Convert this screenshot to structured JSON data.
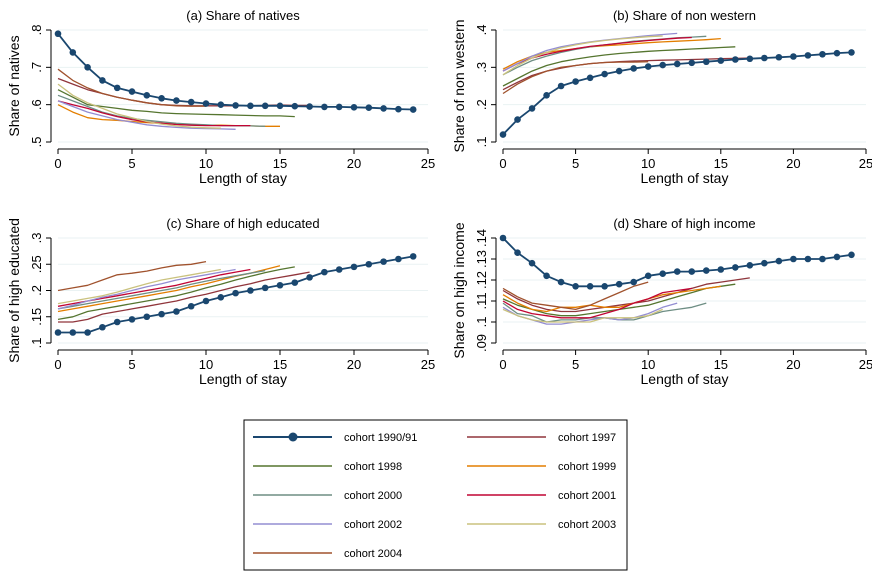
{
  "colors": {
    "cohort_1990_91": "#1a476f",
    "cohort_1997": "#90353b",
    "cohort_1998": "#55752f",
    "cohort_1999": "#e37e00",
    "cohort_2000": "#6e8e84",
    "cohort_2001": "#c10534",
    "cohort_2002": "#938dd2",
    "cohort_2003": "#cac27e",
    "cohort_2004": "#a0522d"
  },
  "legend": [
    "cohort 1990/91",
    "cohort 1997",
    "cohort 1998",
    "cohort 1999",
    "cohort 2000",
    "cohort 2001",
    "cohort 2002",
    "cohort 2003",
    "cohort 2004"
  ],
  "chart_data": [
    {
      "type": "line",
      "title": "(a) Share of natives",
      "xlabel": "Length of stay",
      "ylabel": "Share of natives",
      "xlim": [
        0,
        25
      ],
      "xticks": [
        0,
        5,
        10,
        15,
        20,
        25
      ],
      "ylim": [
        0.5,
        0.8
      ],
      "yticks": [
        "0.5",
        "0.6",
        "0.7",
        "0.8"
      ],
      "yticklabels": [
        ".5",
        ".6",
        ".7",
        ".8"
      ],
      "series": [
        {
          "name": "cohort 1990/91",
          "color_key": "cohort_1990_91",
          "markers": true,
          "y": [
            0.79,
            0.74,
            0.7,
            0.665,
            0.645,
            0.635,
            0.625,
            0.617,
            0.611,
            0.607,
            0.603,
            0.6,
            0.598,
            0.597,
            0.597,
            0.597,
            0.596,
            0.595,
            0.594,
            0.594,
            0.593,
            0.592,
            0.59,
            0.588,
            0.587
          ]
        },
        {
          "name": "cohort 1997",
          "color_key": "cohort_1997",
          "y": [
            0.67,
            0.655,
            0.64,
            0.63,
            0.62,
            0.612,
            0.605,
            0.6,
            0.598,
            0.597,
            0.597,
            0.597,
            0.597,
            0.597,
            0.598,
            0.599,
            0.598,
            0.598
          ]
        },
        {
          "name": "cohort 1998",
          "color_key": "cohort_1998",
          "y": [
            0.64,
            0.62,
            0.6,
            0.595,
            0.59,
            0.585,
            0.582,
            0.578,
            0.576,
            0.575,
            0.574,
            0.573,
            0.572,
            0.571,
            0.57,
            0.57,
            0.568
          ]
        },
        {
          "name": "cohort 1999",
          "color_key": "cohort_1999",
          "y": [
            0.6,
            0.58,
            0.565,
            0.56,
            0.558,
            0.555,
            0.552,
            0.55,
            0.548,
            0.546,
            0.545,
            0.545,
            0.544,
            0.543,
            0.542,
            0.542
          ]
        },
        {
          "name": "cohort 2000",
          "color_key": "cohort_2000",
          "y": [
            0.625,
            0.61,
            0.595,
            0.58,
            0.57,
            0.563,
            0.558,
            0.554,
            0.55,
            0.548,
            0.546,
            0.544,
            0.543,
            0.543,
            0.542
          ]
        },
        {
          "name": "cohort 2001",
          "color_key": "cohort_2001",
          "y": [
            0.61,
            0.6,
            0.59,
            0.578,
            0.568,
            0.56,
            0.554,
            0.55,
            0.547,
            0.545,
            0.544,
            0.544,
            0.544,
            0.544
          ]
        },
        {
          "name": "cohort 2002",
          "color_key": "cohort_2002",
          "y": [
            0.61,
            0.595,
            0.58,
            0.57,
            0.56,
            0.553,
            0.546,
            0.542,
            0.539,
            0.537,
            0.536,
            0.535,
            0.534
          ]
        },
        {
          "name": "cohort 2003",
          "color_key": "cohort_2003",
          "y": [
            0.655,
            0.625,
            0.605,
            0.59,
            0.575,
            0.565,
            0.555,
            0.548,
            0.543,
            0.54,
            0.538,
            0.537
          ]
        },
        {
          "name": "cohort 2004",
          "color_key": "cohort_2004",
          "y": [
            0.695,
            0.665,
            0.645,
            0.63,
            0.62,
            0.612,
            0.605,
            0.6,
            0.597,
            0.596,
            0.596
          ]
        }
      ]
    },
    {
      "type": "line",
      "title": "(b) Share of non western",
      "xlabel": "Length of stay",
      "ylabel": "Share of non western",
      "xlim": [
        0,
        25
      ],
      "xticks": [
        0,
        5,
        10,
        15,
        20,
        25
      ],
      "ylim": [
        0.1,
        0.4
      ],
      "yticks": [
        "0.1",
        "0.2",
        "0.3",
        "0.4"
      ],
      "yticklabels": [
        ".1",
        ".2",
        ".3",
        ".4"
      ],
      "series": [
        {
          "name": "cohort 1990/91",
          "color_key": "cohort_1990_91",
          "markers": true,
          "y": [
            0.12,
            0.16,
            0.19,
            0.225,
            0.25,
            0.262,
            0.272,
            0.282,
            0.29,
            0.297,
            0.302,
            0.306,
            0.309,
            0.312,
            0.315,
            0.318,
            0.321,
            0.323,
            0.325,
            0.327,
            0.329,
            0.332,
            0.335,
            0.338,
            0.34
          ]
        },
        {
          "name": "cohort 1997",
          "color_key": "cohort_1997",
          "y": [
            0.24,
            0.26,
            0.278,
            0.29,
            0.298,
            0.305,
            0.31,
            0.313,
            0.315,
            0.317,
            0.318,
            0.319,
            0.32,
            0.321,
            0.322,
            0.323,
            0.324,
            0.325
          ]
        },
        {
          "name": "cohort 1998",
          "color_key": "cohort_1998",
          "y": [
            0.25,
            0.27,
            0.29,
            0.305,
            0.315,
            0.322,
            0.328,
            0.333,
            0.337,
            0.34,
            0.343,
            0.345,
            0.347,
            0.349,
            0.351,
            0.353,
            0.355
          ]
        },
        {
          "name": "cohort 1999",
          "color_key": "cohort_1999",
          "y": [
            0.295,
            0.315,
            0.33,
            0.34,
            0.345,
            0.35,
            0.355,
            0.358,
            0.36,
            0.363,
            0.366,
            0.368,
            0.37,
            0.372,
            0.374,
            0.377
          ]
        },
        {
          "name": "cohort 2000",
          "color_key": "cohort_2000",
          "y": [
            0.28,
            0.3,
            0.318,
            0.33,
            0.34,
            0.348,
            0.355,
            0.36,
            0.365,
            0.37,
            0.373,
            0.376,
            0.379,
            0.381,
            0.383
          ]
        },
        {
          "name": "cohort 2001",
          "color_key": "cohort_2001",
          "y": [
            0.29,
            0.31,
            0.325,
            0.335,
            0.343,
            0.35,
            0.356,
            0.36,
            0.364,
            0.368,
            0.372,
            0.375,
            0.378,
            0.38
          ]
        },
        {
          "name": "cohort 2002",
          "color_key": "cohort_2002",
          "y": [
            0.29,
            0.31,
            0.33,
            0.345,
            0.355,
            0.362,
            0.368,
            0.373,
            0.377,
            0.381,
            0.385,
            0.388,
            0.391
          ]
        },
        {
          "name": "cohort 2003",
          "color_key": "cohort_2003",
          "y": [
            0.28,
            0.305,
            0.325,
            0.34,
            0.352,
            0.36,
            0.367,
            0.372,
            0.376,
            0.379,
            0.382,
            0.384
          ]
        },
        {
          "name": "cohort 2004",
          "color_key": "cohort_2004",
          "y": [
            0.23,
            0.255,
            0.275,
            0.29,
            0.3,
            0.305,
            0.31,
            0.313,
            0.314,
            0.314,
            0.315
          ]
        }
      ]
    },
    {
      "type": "line",
      "title": "(c) Share of high educated",
      "xlabel": "Length of stay",
      "ylabel": "Share of high educated",
      "xlim": [
        0,
        25
      ],
      "xticks": [
        0,
        5,
        10,
        15,
        20,
        25
      ],
      "ylim": [
        0.1,
        0.3
      ],
      "yticks": [
        "0.1",
        "0.15",
        "0.2",
        "0.25",
        "0.3"
      ],
      "yticklabels": [
        ".1",
        ".15",
        ".2",
        ".25",
        ".3"
      ],
      "series": [
        {
          "name": "cohort 1990/91",
          "color_key": "cohort_1990_91",
          "markers": true,
          "y": [
            0.12,
            0.12,
            0.12,
            0.13,
            0.14,
            0.145,
            0.15,
            0.155,
            0.16,
            0.17,
            0.18,
            0.187,
            0.195,
            0.2,
            0.205,
            0.21,
            0.215,
            0.225,
            0.235,
            0.24,
            0.245,
            0.25,
            0.255,
            0.26,
            0.265
          ]
        },
        {
          "name": "cohort 1997",
          "color_key": "cohort_1997",
          "y": [
            0.14,
            0.14,
            0.145,
            0.155,
            0.16,
            0.165,
            0.17,
            0.175,
            0.18,
            0.187,
            0.193,
            0.2,
            0.207,
            0.213,
            0.22,
            0.225,
            0.23,
            0.235
          ]
        },
        {
          "name": "cohort 1998",
          "color_key": "cohort_1998",
          "y": [
            0.145,
            0.15,
            0.16,
            0.165,
            0.17,
            0.175,
            0.18,
            0.185,
            0.19,
            0.197,
            0.205,
            0.212,
            0.22,
            0.227,
            0.234,
            0.24,
            0.245
          ]
        },
        {
          "name": "cohort 1999",
          "color_key": "cohort_1999",
          "y": [
            0.16,
            0.165,
            0.17,
            0.175,
            0.18,
            0.185,
            0.19,
            0.195,
            0.2,
            0.207,
            0.213,
            0.22,
            0.227,
            0.233,
            0.24,
            0.247
          ]
        },
        {
          "name": "cohort 2000",
          "color_key": "cohort_2000",
          "y": [
            0.165,
            0.17,
            0.175,
            0.18,
            0.185,
            0.19,
            0.195,
            0.2,
            0.205,
            0.212,
            0.218,
            0.223,
            0.228,
            0.233,
            0.238
          ]
        },
        {
          "name": "cohort 2001",
          "color_key": "cohort_2001",
          "y": [
            0.17,
            0.175,
            0.18,
            0.185,
            0.19,
            0.195,
            0.2,
            0.205,
            0.21,
            0.217,
            0.223,
            0.23,
            0.235,
            0.24
          ]
        },
        {
          "name": "cohort 2002",
          "color_key": "cohort_2002",
          "y": [
            0.165,
            0.172,
            0.18,
            0.187,
            0.193,
            0.2,
            0.207,
            0.213,
            0.22,
            0.225,
            0.23,
            0.235,
            0.24
          ]
        },
        {
          "name": "cohort 2003",
          "color_key": "cohort_2003",
          "y": [
            0.175,
            0.18,
            0.185,
            0.19,
            0.197,
            0.205,
            0.213,
            0.22,
            0.225,
            0.23,
            0.235,
            0.24
          ]
        },
        {
          "name": "cohort 2004",
          "color_key": "cohort_2004",
          "y": [
            0.2,
            0.205,
            0.21,
            0.22,
            0.23,
            0.233,
            0.237,
            0.243,
            0.248,
            0.25,
            0.255
          ]
        }
      ]
    },
    {
      "type": "line",
      "title": "(d) Share of high income",
      "xlabel": "Length of stay",
      "ylabel": "Share on high income",
      "xlim": [
        0,
        25
      ],
      "xticks": [
        0,
        5,
        10,
        15,
        20,
        25
      ],
      "ylim": [
        0.09,
        0.14
      ],
      "yticks": [
        "0.09",
        "0.1",
        "0.11",
        "0.12",
        "0.13",
        "0.14"
      ],
      "yticklabels": [
        ".09",
        ".1",
        ".11",
        ".12",
        ".13",
        ".14"
      ],
      "series": [
        {
          "name": "cohort 1990/91",
          "color_key": "cohort_1990_91",
          "markers": true,
          "y": [
            0.14,
            0.133,
            0.128,
            0.122,
            0.119,
            0.117,
            0.117,
            0.117,
            0.118,
            0.119,
            0.122,
            0.123,
            0.124,
            0.124,
            0.1245,
            0.125,
            0.126,
            0.127,
            0.128,
            0.129,
            0.13,
            0.13,
            0.13,
            0.131,
            0.132
          ]
        },
        {
          "name": "cohort 1997",
          "color_key": "cohort_1997",
          "y": [
            0.115,
            0.111,
            0.108,
            0.106,
            0.105,
            0.105,
            0.106,
            0.107,
            0.108,
            0.109,
            0.11,
            0.112,
            0.114,
            0.116,
            0.118,
            0.119,
            0.12,
            0.121
          ]
        },
        {
          "name": "cohort 1998",
          "color_key": "cohort_1998",
          "y": [
            0.111,
            0.108,
            0.106,
            0.104,
            0.103,
            0.103,
            0.104,
            0.105,
            0.106,
            0.107,
            0.108,
            0.11,
            0.112,
            0.114,
            0.116,
            0.117,
            0.118
          ]
        },
        {
          "name": "cohort 1999",
          "color_key": "cohort_1999",
          "y": [
            0.113,
            0.109,
            0.106,
            0.105,
            0.107,
            0.107,
            0.108,
            0.107,
            0.107,
            0.109,
            0.111,
            0.113,
            0.114,
            0.115,
            0.116,
            0.117
          ]
        },
        {
          "name": "cohort 2000",
          "color_key": "cohort_2000",
          "y": [
            0.109,
            0.104,
            0.103,
            0.1,
            0.101,
            0.101,
            0.102,
            0.102,
            0.101,
            0.101,
            0.103,
            0.105,
            0.106,
            0.107,
            0.109
          ]
        },
        {
          "name": "cohort 2001",
          "color_key": "cohort_2001",
          "y": [
            0.11,
            0.106,
            0.104,
            0.103,
            0.102,
            0.102,
            0.102,
            0.104,
            0.106,
            0.109,
            0.111,
            0.114,
            0.115,
            0.116
          ]
        },
        {
          "name": "cohort 2002",
          "color_key": "cohort_2002",
          "y": [
            0.107,
            0.103,
            0.101,
            0.099,
            0.099,
            0.1,
            0.101,
            0.102,
            0.101,
            0.102,
            0.104,
            0.107,
            0.109
          ]
        },
        {
          "name": "cohort 2003",
          "color_key": "cohort_2003",
          "y": [
            0.106,
            0.103,
            0.101,
            0.1,
            0.1,
            0.1,
            0.1,
            0.102,
            0.102,
            0.102,
            0.103,
            0.106
          ]
        },
        {
          "name": "cohort 2004",
          "color_key": "cohort_2004",
          "y": [
            0.116,
            0.112,
            0.109,
            0.108,
            0.107,
            0.106,
            0.108,
            0.111,
            0.114,
            0.117,
            0.119
          ]
        }
      ]
    }
  ]
}
